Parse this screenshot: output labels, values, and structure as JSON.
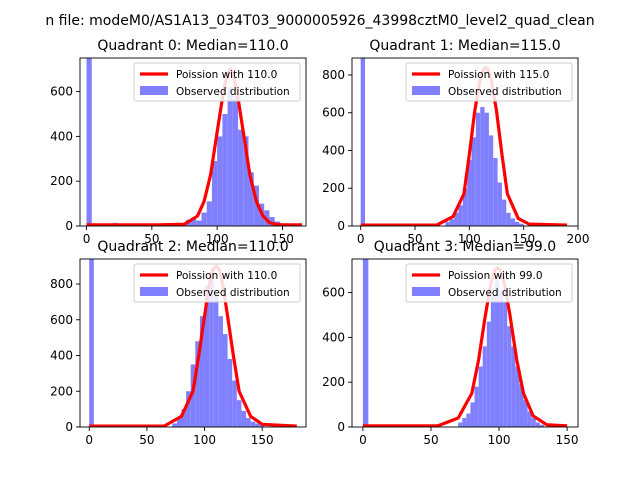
{
  "figure": {
    "suptitle": "n file: modeM0/AS1A13_034T03_9000005926_43998cztM0_level2_quad_clean",
    "colors": {
      "poisson": "#ff0000",
      "observed": "#8080ff",
      "axis": "#000000",
      "legend_border": "#cccccc"
    }
  },
  "chart_data": [
    {
      "type": "bar",
      "title": "Quadrant 0: Median=110.0",
      "xlim": [
        -5,
        168
      ],
      "ylim": [
        0,
        750
      ],
      "xticks": [
        0,
        50,
        100,
        150
      ],
      "yticks": [
        0,
        200,
        400,
        600
      ],
      "legend_placement": "upper right",
      "series": [
        {
          "name": "Poission with 110.0",
          "kind": "line",
          "x": [
            0,
            55,
            75,
            85,
            90,
            95,
            100,
            104,
            107,
            110,
            113,
            116,
            120,
            125,
            130,
            135,
            140,
            145,
            150,
            165
          ],
          "y": [
            5,
            5,
            8,
            45,
            110,
            230,
            420,
            570,
            660,
            700,
            660,
            570,
            420,
            230,
            110,
            45,
            15,
            8,
            5,
            5
          ]
        },
        {
          "name": "Observed distribution",
          "kind": "hist",
          "bins": [
            [
              0,
              4,
              750
            ],
            [
              20,
              24,
              14
            ],
            [
              24,
              28,
              10
            ],
            [
              76,
              80,
              28
            ],
            [
              80,
              84,
              32
            ],
            [
              84,
              88,
              24
            ],
            [
              88,
              92,
              60
            ],
            [
              92,
              96,
              110
            ],
            [
              96,
              100,
              290
            ],
            [
              100,
              104,
              400
            ],
            [
              104,
              108,
              500
            ],
            [
              108,
              112,
              620
            ],
            [
              112,
              116,
              580
            ],
            [
              116,
              120,
              430
            ],
            [
              120,
              124,
              400
            ],
            [
              124,
              128,
              240
            ],
            [
              128,
              132,
              180
            ],
            [
              132,
              136,
              100
            ],
            [
              136,
              140,
              70
            ],
            [
              140,
              144,
              40
            ],
            [
              144,
              148,
              20
            ],
            [
              148,
              152,
              8
            ]
          ]
        }
      ]
    },
    {
      "type": "bar",
      "title": "Quadrant 1: Median=115.0",
      "xlim": [
        -8,
        200
      ],
      "ylim": [
        0,
        890
      ],
      "xticks": [
        0,
        50,
        100,
        150,
        200
      ],
      "yticks": [
        0,
        200,
        400,
        600,
        800
      ],
      "legend_placement": "upper right",
      "series": [
        {
          "name": "Poission with 115.0",
          "kind": "line",
          "x": [
            0,
            70,
            85,
            95,
            100,
            105,
            110,
            113,
            115,
            117,
            120,
            125,
            130,
            135,
            145,
            155,
            190
          ],
          "y": [
            5,
            5,
            50,
            170,
            380,
            610,
            780,
            830,
            840,
            830,
            780,
            610,
            380,
            170,
            40,
            10,
            5
          ]
        },
        {
          "name": "Observed distribution",
          "kind": "hist",
          "bins": [
            [
              0,
              4,
              890
            ],
            [
              78,
              82,
              22
            ],
            [
              82,
              86,
              36
            ],
            [
              86,
              90,
              70
            ],
            [
              90,
              94,
              110
            ],
            [
              94,
              98,
              200
            ],
            [
              98,
              102,
              350
            ],
            [
              102,
              106,
              470
            ],
            [
              106,
              110,
              600
            ],
            [
              110,
              114,
              630
            ],
            [
              114,
              118,
              600
            ],
            [
              118,
              122,
              480
            ],
            [
              122,
              126,
              360
            ],
            [
              126,
              130,
              230
            ],
            [
              130,
              134,
              140
            ],
            [
              134,
              138,
              70
            ],
            [
              138,
              142,
              40
            ],
            [
              142,
              146,
              22
            ],
            [
              146,
              150,
              12
            ]
          ]
        }
      ]
    },
    {
      "type": "bar",
      "title": "Quadrant 2: Median=110.0",
      "xlim": [
        -8,
        188
      ],
      "ylim": [
        0,
        940
      ],
      "xticks": [
        0,
        50,
        100,
        150
      ],
      "yticks": [
        0,
        200,
        400,
        600,
        800
      ],
      "legend_placement": "upper right",
      "series": [
        {
          "name": "Poission with 110.0",
          "kind": "line",
          "x": [
            0,
            65,
            80,
            90,
            95,
            100,
            104,
            107,
            110,
            113,
            116,
            120,
            125,
            130,
            140,
            150,
            180
          ],
          "y": [
            5,
            5,
            60,
            200,
            400,
            620,
            790,
            880,
            900,
            880,
            790,
            620,
            400,
            200,
            60,
            15,
            5
          ]
        },
        {
          "name": "Observed distribution",
          "kind": "hist",
          "bins": [
            [
              0,
              4,
              940
            ],
            [
              72,
              76,
              20
            ],
            [
              76,
              80,
              50
            ],
            [
              80,
              84,
              100
            ],
            [
              84,
              88,
              200
            ],
            [
              88,
              92,
              350
            ],
            [
              92,
              96,
              480
            ],
            [
              96,
              100,
              620
            ],
            [
              100,
              104,
              790
            ],
            [
              104,
              108,
              850
            ],
            [
              108,
              112,
              740
            ],
            [
              112,
              116,
              620
            ],
            [
              116,
              120,
              520
            ],
            [
              120,
              124,
              380
            ],
            [
              124,
              128,
              260
            ],
            [
              128,
              132,
              150
            ],
            [
              132,
              136,
              90
            ],
            [
              136,
              140,
              50
            ],
            [
              140,
              144,
              30
            ],
            [
              144,
              148,
              20
            ],
            [
              148,
              152,
              10
            ]
          ]
        }
      ]
    },
    {
      "type": "bar",
      "title": "Quadrant 3: Median=99.0",
      "xlim": [
        -8,
        158
      ],
      "ylim": [
        0,
        750
      ],
      "xticks": [
        0,
        50,
        100,
        150
      ],
      "yticks": [
        0,
        200,
        400,
        600
      ],
      "legend_placement": "upper right",
      "series": [
        {
          "name": "Poission with 99.0",
          "kind": "line",
          "x": [
            0,
            55,
            70,
            80,
            85,
            90,
            94,
            97,
            99,
            101,
            104,
            108,
            113,
            118,
            125,
            135,
            150
          ],
          "y": [
            5,
            5,
            40,
            150,
            300,
            500,
            640,
            700,
            710,
            700,
            640,
            500,
            300,
            150,
            50,
            10,
            5
          ]
        },
        {
          "name": "Observed distribution",
          "kind": "hist",
          "bins": [
            [
              0,
              4,
              750
            ],
            [
              70,
              73,
              20
            ],
            [
              73,
              76,
              40
            ],
            [
              76,
              79,
              60
            ],
            [
              79,
              82,
              110
            ],
            [
              82,
              85,
              180
            ],
            [
              85,
              88,
              270
            ],
            [
              88,
              91,
              360
            ],
            [
              91,
              94,
              470
            ],
            [
              94,
              97,
              590
            ],
            [
              97,
              100,
              660
            ],
            [
              100,
              103,
              610
            ],
            [
              103,
              106,
              560
            ],
            [
              106,
              109,
              450
            ],
            [
              109,
              112,
              360
            ],
            [
              112,
              115,
              270
            ],
            [
              115,
              118,
              190
            ],
            [
              118,
              121,
              120
            ],
            [
              121,
              124,
              70
            ],
            [
              124,
              127,
              40
            ],
            [
              127,
              130,
              20
            ],
            [
              130,
              133,
              10
            ]
          ]
        }
      ]
    }
  ]
}
